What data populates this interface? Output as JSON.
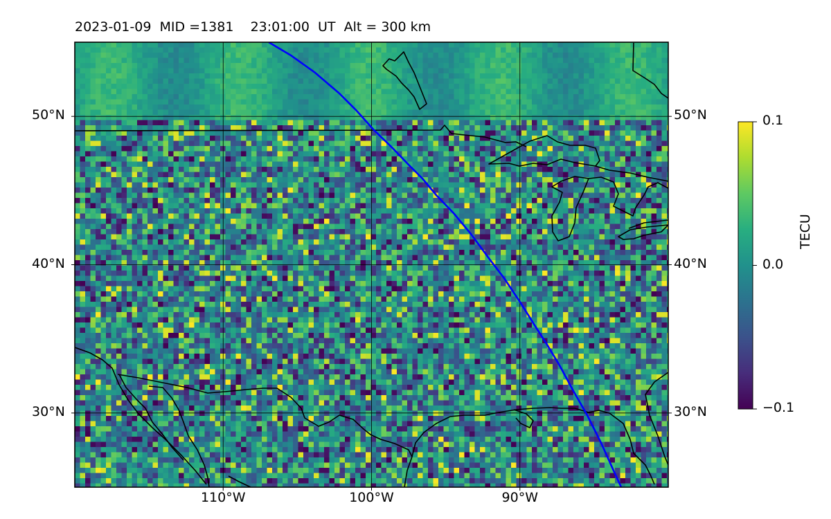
{
  "title": "2023-01-09  MID =1381    23:01:00  UT  Alt = 300 km",
  "map": {
    "lon_range": [
      -120,
      -80
    ],
    "lat_range": [
      25,
      55
    ],
    "lon_ticks": [
      {
        "value": -110,
        "label": "110°W"
      },
      {
        "value": -100,
        "label": "100°W"
      },
      {
        "value": -90,
        "label": "90°W"
      }
    ],
    "lat_ticks": [
      {
        "value": 30,
        "label": "30°N"
      },
      {
        "value": 40,
        "label": "40°N"
      },
      {
        "value": 50,
        "label": "50°N"
      }
    ],
    "grid": true,
    "track_color": "#0000ff",
    "coastline_color": "#000000"
  },
  "colorbar": {
    "label": "TECU",
    "cmap": "viridis",
    "vmin": -0.1,
    "vmax": 0.1,
    "ticks": [
      {
        "value": 0.1,
        "label": "0.1"
      },
      {
        "value": 0.0,
        "label": "0.0"
      },
      {
        "value": -0.1,
        "label": "−0.1"
      }
    ]
  }
}
